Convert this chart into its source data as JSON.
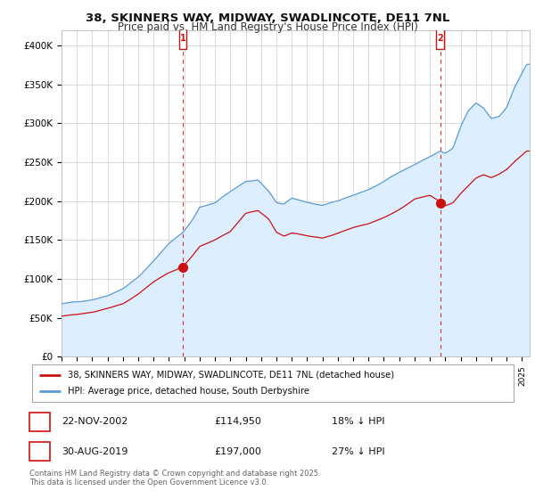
{
  "title": "38, SKINNERS WAY, MIDWAY, SWADLINCOTE, DE11 7NL",
  "subtitle": "Price paid vs. HM Land Registry's House Price Index (HPI)",
  "ylim": [
    0,
    420000
  ],
  "yticks": [
    0,
    50000,
    100000,
    150000,
    200000,
    250000,
    300000,
    350000,
    400000
  ],
  "ytick_labels": [
    "£0",
    "£50K",
    "£100K",
    "£150K",
    "£200K",
    "£250K",
    "£300K",
    "£350K",
    "£400K"
  ],
  "hpi_color": "#5b9bd5",
  "hpi_fill_color": "#ddeeff",
  "price_color": "#cc1111",
  "sale1_date_num": 2002.896,
  "sale1_price": 114950,
  "sale2_date_num": 2019.663,
  "sale2_price": 197000,
  "xlim_start": 1995.0,
  "xlim_end": 2025.5,
  "legend_property": "38, SKINNERS WAY, MIDWAY, SWADLINCOTE, DE11 7NL (detached house)",
  "legend_hpi": "HPI: Average price, detached house, South Derbyshire",
  "table_row1": [
    "1",
    "22-NOV-2002",
    "£114,950",
    "18% ↓ HPI"
  ],
  "table_row2": [
    "2",
    "30-AUG-2019",
    "£197,000",
    "27% ↓ HPI"
  ],
  "footnote": "Contains HM Land Registry data © Crown copyright and database right 2025.\nThis data is licensed under the Open Government Licence v3.0.",
  "bg_color": "#ffffff",
  "grid_color": "#cccccc"
}
